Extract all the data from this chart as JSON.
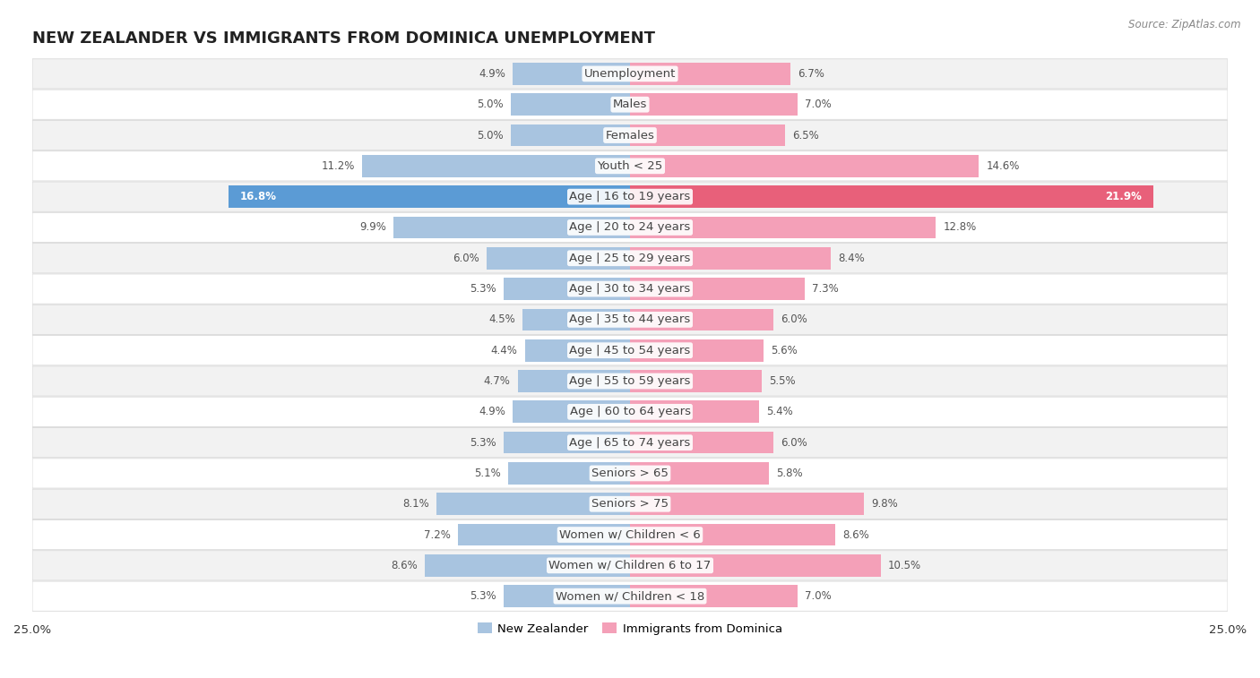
{
  "title": "NEW ZEALANDER VS IMMIGRANTS FROM DOMINICA UNEMPLOYMENT",
  "source": "Source: ZipAtlas.com",
  "categories": [
    "Unemployment",
    "Males",
    "Females",
    "Youth < 25",
    "Age | 16 to 19 years",
    "Age | 20 to 24 years",
    "Age | 25 to 29 years",
    "Age | 30 to 34 years",
    "Age | 35 to 44 years",
    "Age | 45 to 54 years",
    "Age | 55 to 59 years",
    "Age | 60 to 64 years",
    "Age | 65 to 74 years",
    "Seniors > 65",
    "Seniors > 75",
    "Women w/ Children < 6",
    "Women w/ Children 6 to 17",
    "Women w/ Children < 18"
  ],
  "nz_values": [
    4.9,
    5.0,
    5.0,
    11.2,
    16.8,
    9.9,
    6.0,
    5.3,
    4.5,
    4.4,
    4.7,
    4.9,
    5.3,
    5.1,
    8.1,
    7.2,
    8.6,
    5.3
  ],
  "dom_values": [
    6.7,
    7.0,
    6.5,
    14.6,
    21.9,
    12.8,
    8.4,
    7.3,
    6.0,
    5.6,
    5.5,
    5.4,
    6.0,
    5.8,
    9.8,
    8.6,
    10.5,
    7.0
  ],
  "nz_color": "#a8c4e0",
  "dom_color": "#f4a0b8",
  "nz_color_highlight": "#5b9bd5",
  "dom_color_highlight": "#e8607a",
  "row_bg_light": "#f2f2f2",
  "row_bg_white": "#ffffff",
  "row_border": "#d8d8d8",
  "axis_limit": 25.0,
  "title_fontsize": 13,
  "label_fontsize": 9.5,
  "value_fontsize": 8.5,
  "legend_fontsize": 9.5
}
